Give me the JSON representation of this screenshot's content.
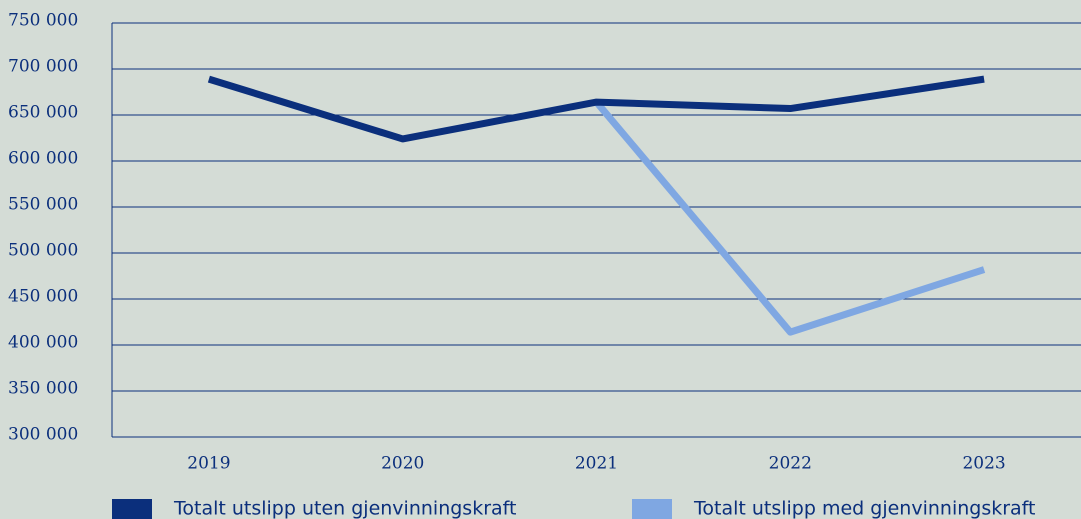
{
  "chart_data": {
    "type": "line",
    "categories": [
      "2019",
      "2020",
      "2021",
      "2022",
      "2023"
    ],
    "series": [
      {
        "name": "Totalt utslipp uten gjenvinningskraft",
        "color": "#0b2f7c",
        "values": [
          689000,
          624000,
          664000,
          657000,
          689000
        ]
      },
      {
        "name": "Totalt utslipp med gjenvinningskraft",
        "color": "#7fa7e2",
        "values": [
          null,
          null,
          664000,
          414000,
          482000
        ]
      }
    ],
    "ylim": [
      300000,
      750000
    ],
    "yticks": [
      {
        "value": 300000,
        "label": "300 000"
      },
      {
        "value": 350000,
        "label": "350 000"
      },
      {
        "value": 400000,
        "label": "400 000"
      },
      {
        "value": 450000,
        "label": "450 000"
      },
      {
        "value": 500000,
        "label": "500 000"
      },
      {
        "value": 550000,
        "label": "550 000"
      },
      {
        "value": 600000,
        "label": "600 000"
      },
      {
        "value": 650000,
        "label": "650 000"
      },
      {
        "value": 700000,
        "label": "700 000"
      },
      {
        "value": 750000,
        "label": "750 000"
      }
    ],
    "grid": true,
    "legend": "bottom"
  }
}
